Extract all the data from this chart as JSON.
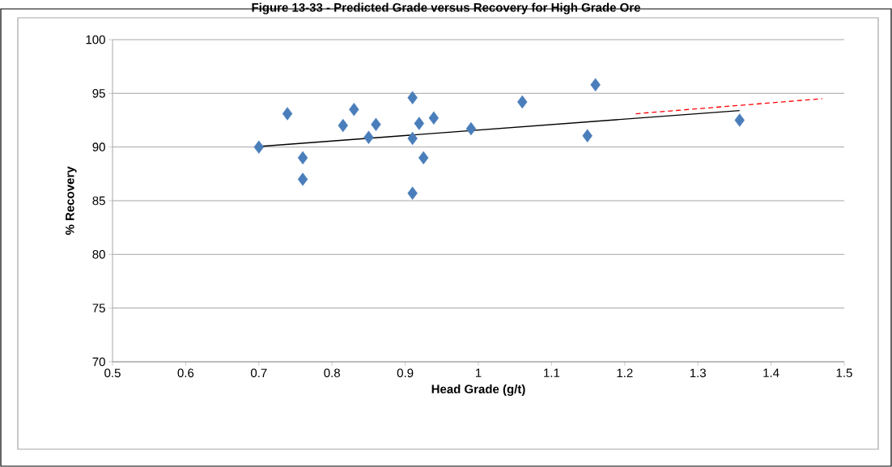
{
  "chart_data": {
    "type": "scatter",
    "title": "Figure 13-33 - Predicted Grade versus Recovery for High Grade Ore",
    "xlabel": "Head Grade (g/t)",
    "ylabel": "% Recovery",
    "series": [
      {
        "color": "#4a7ebb",
        "marker": "diamond",
        "x": [
          0.7,
          0.739,
          0.76,
          0.76,
          0.815,
          0.83,
          0.86,
          0.85,
          0.91,
          0.91,
          0.919,
          0.939,
          0.925,
          0.91,
          0.99,
          1.06,
          1.16,
          1.149,
          1.357
        ],
        "values": [
          90.0,
          93.1,
          89.0,
          87.0,
          92.0,
          93.5,
          92.1,
          90.9,
          94.6,
          90.8,
          92.2,
          92.7,
          89.0,
          85.7,
          91.7,
          94.2,
          95.8,
          91.05,
          92.5
        ]
      },
      {
        "type": "line",
        "color": "#000000",
        "marker": "none",
        "line_style": "solid",
        "x": [
          0.7,
          1.357
        ],
        "values": [
          90.05,
          93.4
        ]
      },
      {
        "type": "line",
        "color": "#ff0000",
        "marker": "none",
        "line_style": "dashed",
        "x": [
          1.215,
          1.47
        ],
        "values": [
          93.1,
          94.5
        ]
      }
    ],
    "xlim": [
      0.5,
      1.5
    ],
    "ylim": [
      70,
      100
    ],
    "xticks": [
      0.5,
      0.6,
      0.7,
      0.8,
      0.9,
      1,
      1.1,
      1.2,
      1.3,
      1.4,
      1.5
    ],
    "yticks": [
      70,
      75,
      80,
      85,
      90,
      95,
      100
    ],
    "grid": "y"
  }
}
